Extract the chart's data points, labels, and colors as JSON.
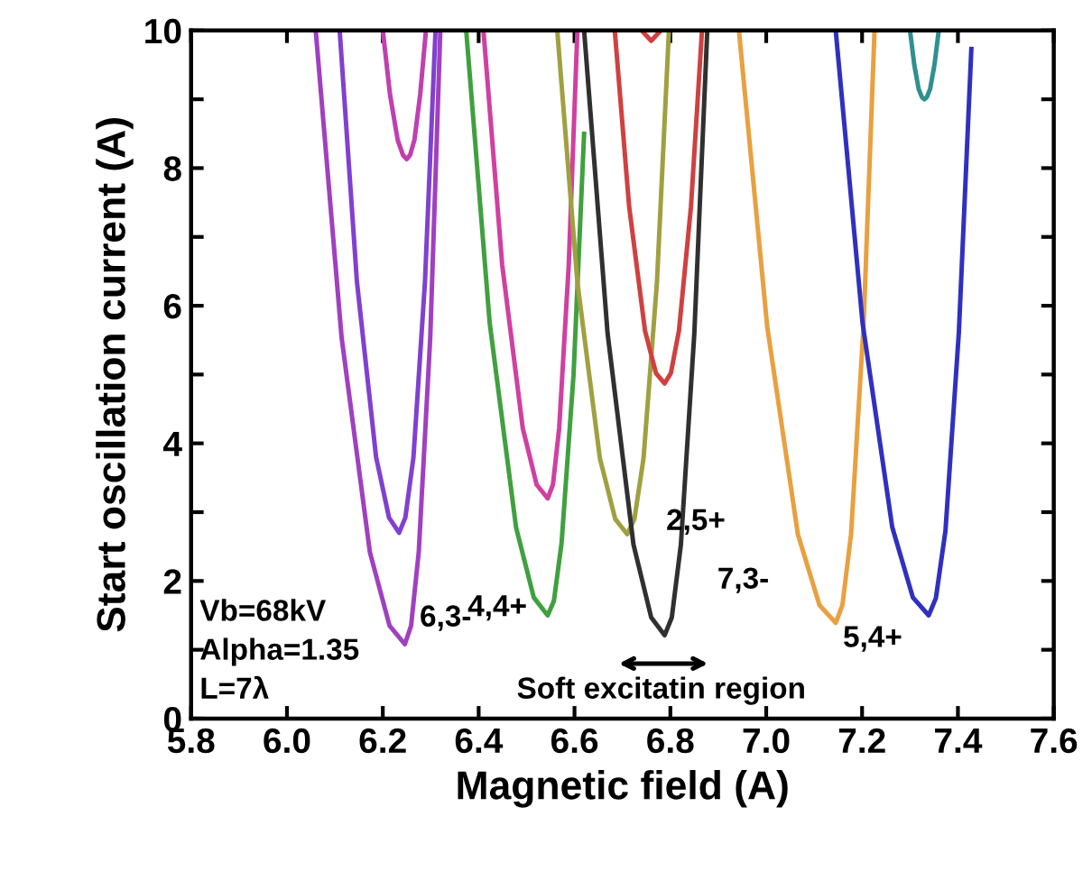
{
  "chart_data": {
    "type": "line",
    "xlabel": "Magnetic field (A)",
    "ylabel": "Start oscillation current (A)",
    "xlim": [
      5.8,
      7.6
    ],
    "ylim": [
      0,
      10
    ],
    "xticks": [
      5.8,
      {
        "value": 6,
        "label": "6.0"
      },
      6.2,
      6.4,
      6.6,
      6.8,
      {
        "value": 7,
        "label": "7.0"
      },
      7.2,
      7.4,
      7.6
    ],
    "yticks": [
      0,
      {
        "value": 1,
        "label": null
      },
      2,
      {
        "value": 3,
        "label": null
      },
      4,
      {
        "value": 5,
        "label": null
      },
      6,
      {
        "value": 7,
        "label": null
      },
      8,
      {
        "value": 9,
        "label": null
      },
      10
    ],
    "grid": false,
    "legend": false,
    "marker": "none",
    "line_style": "solid",
    "series": [
      {
        "color": "#a040c0",
        "x": [
          6.06,
          6.114,
          6.173,
          6.214,
          6.246,
          6.259,
          6.275,
          6.299,
          6.32
        ],
        "values": [
          10,
          5.54,
          2.42,
          1.35,
          1.08,
          1.35,
          2.42,
          5.54,
          10
        ]
      },
      {
        "color": "#8040d0",
        "x": [
          6.11,
          6.146,
          6.186,
          6.213,
          6.234,
          6.247,
          6.264,
          6.288,
          6.31
        ],
        "values": [
          10,
          6.35,
          3.8,
          2.92,
          2.7,
          2.92,
          3.8,
          6.35,
          10
        ]
      },
      {
        "color": "#c040b0",
        "x": [
          6.2,
          6.215,
          6.231,
          6.242,
          6.25,
          6.257,
          6.266,
          6.278,
          6.29
        ],
        "values": [
          10,
          9.07,
          8.41,
          8.19,
          8.13,
          8.19,
          8.41,
          9.07,
          10
        ]
      },
      {
        "color": "#40a040",
        "x": [
          6.374,
          6.423,
          6.478,
          6.515,
          6.544,
          6.557,
          6.573,
          6.598,
          6.62
        ],
        "values": [
          10,
          5.75,
          2.78,
          1.76,
          1.5,
          1.71,
          2.55,
          5.0,
          8.5
        ]
      },
      {
        "color": "#d040a0",
        "x": [
          6.41,
          6.449,
          6.492,
          6.521,
          6.544,
          6.555,
          6.568,
          6.588,
          6.606
        ],
        "values": [
          10,
          6.6,
          4.22,
          3.4,
          3.2,
          3.4,
          4.22,
          6.6,
          10
        ]
      },
      {
        "color": "#a0a040",
        "x": [
          6.564,
          6.606,
          6.653,
          6.685,
          6.71,
          6.725,
          6.744,
          6.772,
          6.797
        ],
        "values": [
          10,
          6.34,
          3.78,
          2.9,
          2.68,
          2.9,
          3.78,
          6.34,
          10
        ]
      },
      {
        "color": "#d04040",
        "x": [
          6.684,
          6.714,
          6.747,
          6.77,
          6.788,
          6.801,
          6.818,
          6.843,
          6.866
        ],
        "values": [
          10,
          7.44,
          5.64,
          5.02,
          4.87,
          5.02,
          5.64,
          7.44,
          10
        ]
      },
      {
        "color": "#d04040",
        "x": [
          6.74,
          6.76,
          6.78
        ],
        "values": [
          10,
          9.85,
          10
        ]
      },
      {
        "color": "#303030",
        "x": [
          6.62,
          6.669,
          6.723,
          6.76,
          6.788,
          6.803,
          6.822,
          6.85,
          6.877
        ],
        "values": [
          10,
          5.6,
          2.53,
          1.47,
          1.21,
          1.47,
          2.53,
          5.6,
          10
        ]
      },
      {
        "color": "#e8a040",
        "x": [
          6.943,
          7.002,
          7.066,
          7.111,
          7.145,
          7.159,
          7.177,
          7.203,
          7.226
        ],
        "values": [
          10,
          5.7,
          2.68,
          1.65,
          1.39,
          1.65,
          2.68,
          5.7,
          10
        ]
      },
      {
        "color": "#3030c0",
        "x": [
          7.145,
          7.201,
          7.263,
          7.306,
          7.339,
          7.354,
          7.374,
          7.402,
          7.428
        ],
        "values": [
          10,
          5.75,
          2.78,
          1.76,
          1.5,
          1.75,
          2.73,
          5.62,
          9.73
        ]
      },
      {
        "color": "#309090",
        "x": [
          7.3,
          7.309,
          7.318,
          7.325,
          7.33,
          7.335,
          7.342,
          7.351,
          7.36
        ],
        "values": [
          10,
          9.5,
          9.15,
          9.03,
          9.0,
          9.03,
          9.15,
          9.5,
          10
        ]
      }
    ],
    "annotations": [
      "6,3-",
      "4,4+",
      "2,5+",
      "7,3-",
      "5,4+",
      "Vb=68kV\nAlpha=1.35\nL=7λ",
      "Soft excitatin region"
    ]
  }
}
